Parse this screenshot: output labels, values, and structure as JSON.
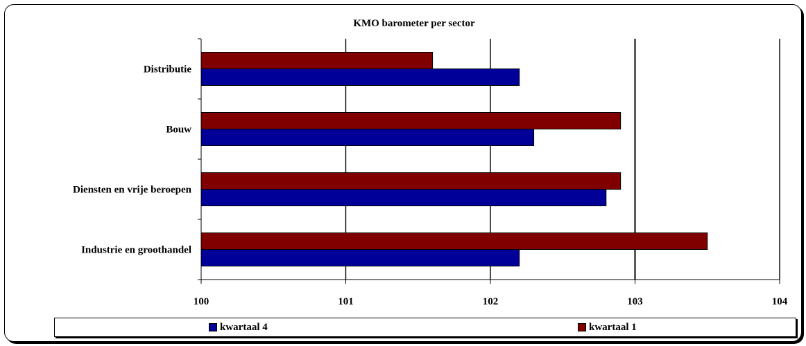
{
  "chart_data": {
    "type": "bar",
    "orientation": "horizontal",
    "title": "KMO barometer per sector",
    "categories": [
      "Distributie",
      "Bouw",
      "Diensten en vrije beroepen",
      "Industrie en groothandel"
    ],
    "series": [
      {
        "name": "kwartaal 1",
        "color": "#800000",
        "values": [
          101.6,
          102.9,
          102.9,
          103.5
        ]
      },
      {
        "name": "kwartaal 4",
        "color": "#000099",
        "values": [
          102.2,
          102.3,
          102.8,
          102.2
        ]
      }
    ],
    "xlim": [
      100,
      104
    ],
    "xticks": [
      "100",
      "101",
      "102",
      "103",
      "104"
    ],
    "grid": "vertical",
    "legend_position": "bottom"
  },
  "legend": {
    "items": [
      {
        "label": "kwartaal 4",
        "color": "#000099"
      },
      {
        "label": "kwartaal 1",
        "color": "#800000"
      }
    ]
  }
}
